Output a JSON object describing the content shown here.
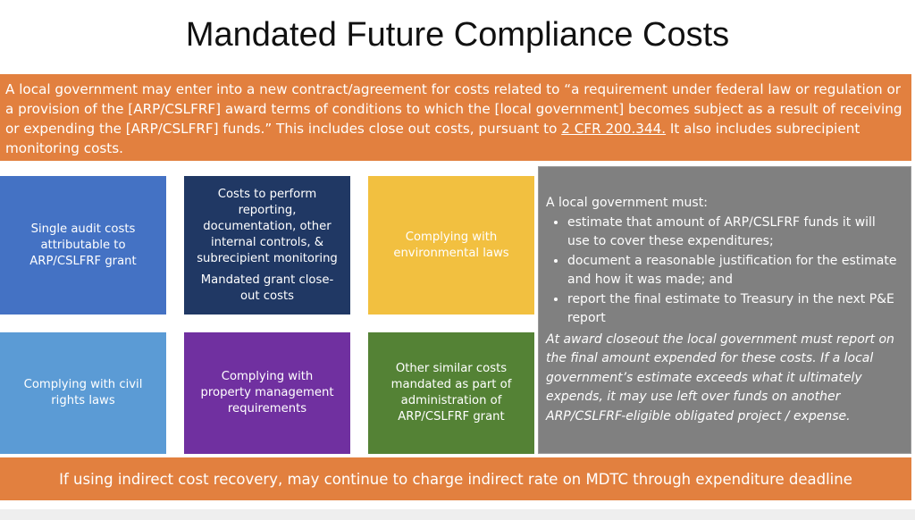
{
  "title": "Mandated Future Compliance Costs",
  "intro": {
    "before": "A local government may enter into a new contract/agreement for costs related to “a requirement under federal law or regulation or a provision of the [ARP/CSLFRF] award terms of conditions to which the [local government] becomes subject as a result of receiving or expending the [ARP/CSLFRF] funds.” This includes close out costs, pursuant to ",
    "link": "2 CFR 200.344.",
    "after": " It also includes subrecipient monitoring costs."
  },
  "tiles": [
    {
      "paragraphs": [
        "Single audit costs attributable to ARP/CSLFRF grant"
      ]
    },
    {
      "paragraphs": [
        "Costs to perform reporting, documentation, other internal controls, & subrecipient monitoring",
        "Mandated grant close-out costs"
      ]
    },
    {
      "paragraphs": [
        "Complying with environmental laws"
      ]
    },
    {
      "paragraphs": [
        "Complying with civil rights laws"
      ]
    },
    {
      "paragraphs": [
        "Complying with property management requirements"
      ]
    },
    {
      "paragraphs": [
        "Other similar costs mandated as part of administration of ARP/CSLFRF grant"
      ]
    }
  ],
  "panel": {
    "heading": "A local government must:",
    "bullets": [
      "estimate that amount of ARP/CSLFRF funds it will use to cover these expenditures;",
      "document a reasonable justification for the estimate and how it was made; and",
      "report the final estimate to Treasury in the next P&E report"
    ],
    "note": "At award closeout the local government must report on the final amount expended for these costs. If a local government’s estimate exceeds what it ultimately expends, it may use left over funds on another ARP/CSLFRF-eligible obligated project / expense."
  },
  "footer": "If using indirect cost recovery, may continue to charge indirect rate on MDTC through expenditure deadline"
}
